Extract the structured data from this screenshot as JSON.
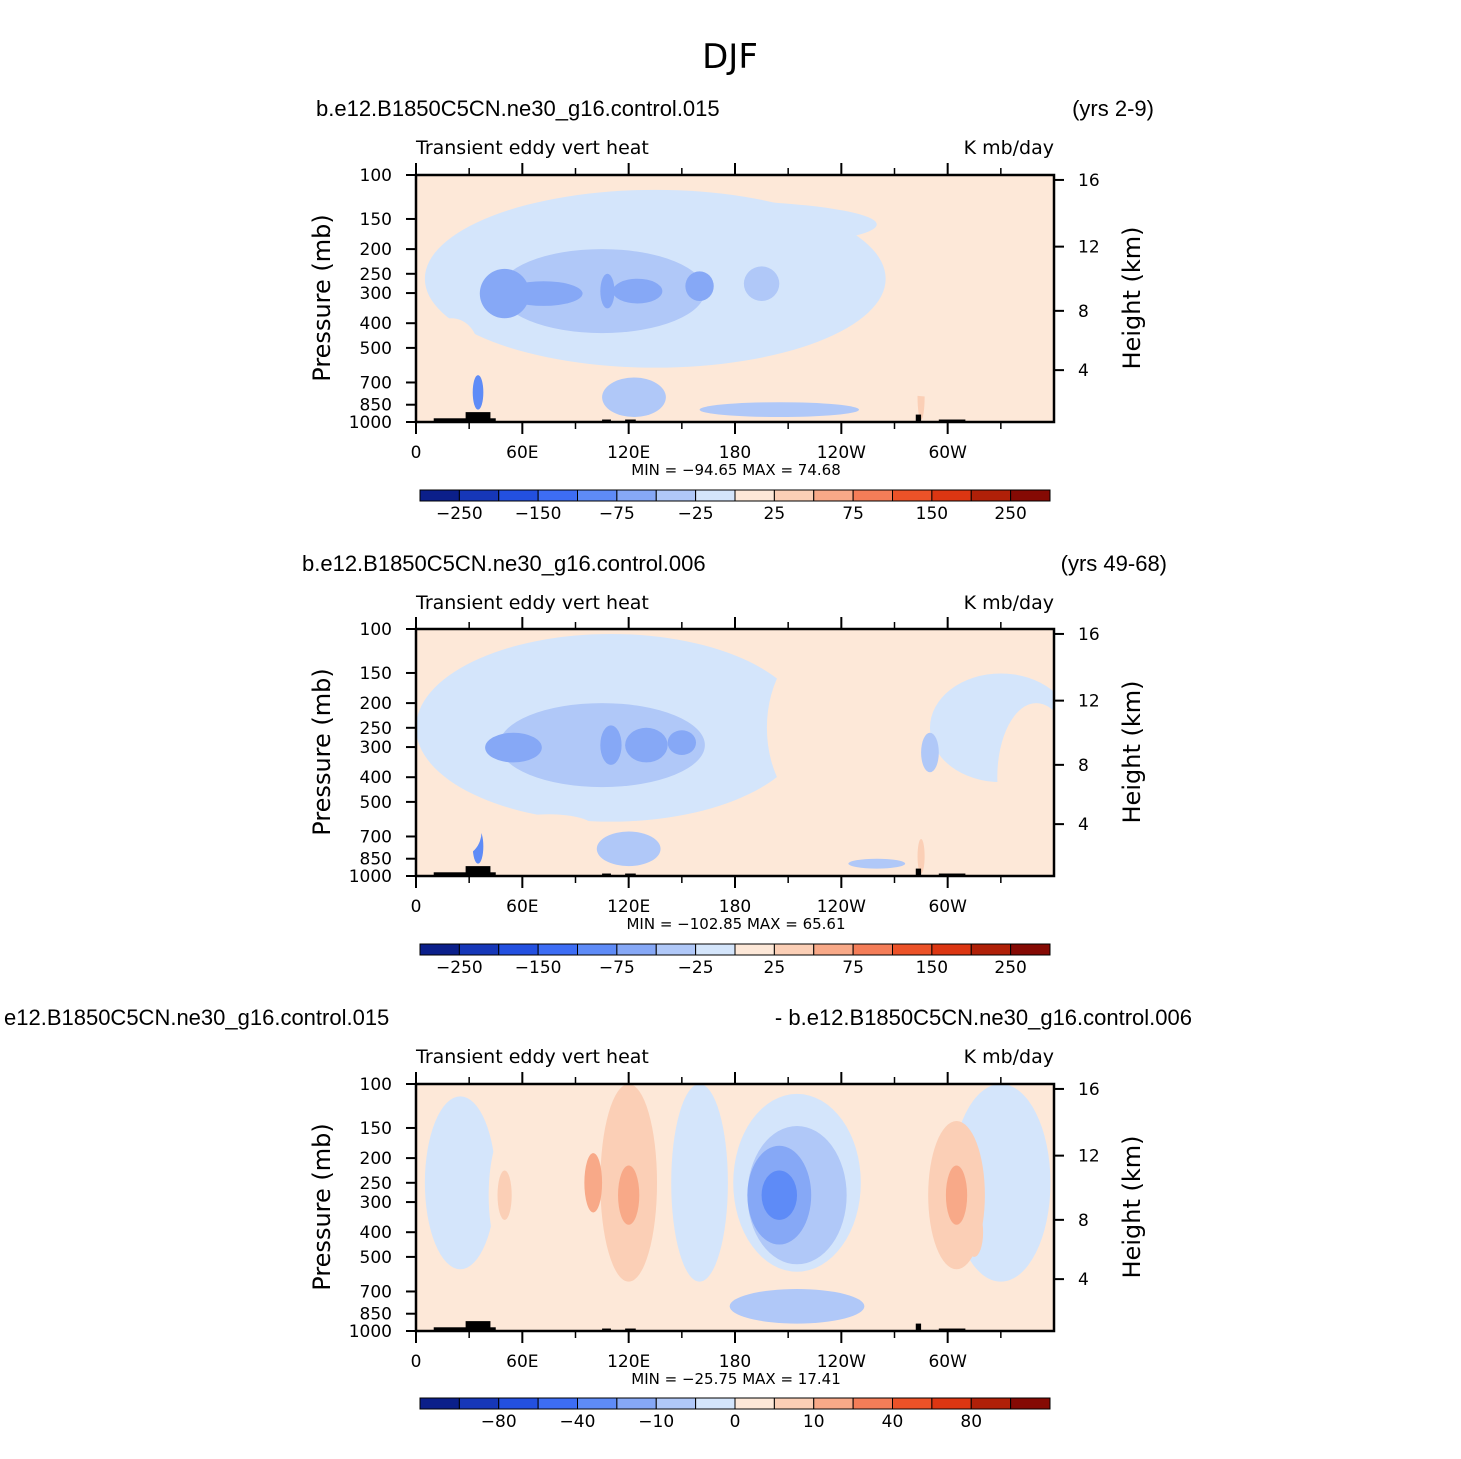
{
  "figure": {
    "title": "DJF"
  },
  "colors": {
    "fill": [
      "#0b1f8a",
      "#1637b8",
      "#2350e0",
      "#3d6df4",
      "#5e8bf7",
      "#86a8f6",
      "#b0c8f8",
      "#d4e5fb",
      "#fde8d8",
      "#fbcfb6",
      "#f8a988",
      "#f47d58",
      "#ec5228",
      "#dc3612",
      "#b02008",
      "#850a04"
    ]
  },
  "panels": [
    {
      "case_label": "b.e12.B1850C5CN.ne30_g16.control.015",
      "years_label": "(yrs 2-9)",
      "field_label": "Transient  eddy  vert  heat",
      "units_label": "K  mb/day",
      "stats_label": "MIN  =   −94.65    MAX  =    74.68",
      "colorbar_labels": [
        "−250",
        "−150",
        "−75",
        "−25",
        "25",
        "75",
        "150",
        "250"
      ]
    },
    {
      "case_label": "b.e12.B1850C5CN.ne30_g16.control.006",
      "years_label": "(yrs 49-68)",
      "field_label": "Transient  eddy  vert  heat",
      "units_label": "K  mb/day",
      "stats_label": "MIN  =  −102.85    MAX  =   65.61",
      "colorbar_labels": [
        "−250",
        "−150",
        "−75",
        "−25",
        "25",
        "75",
        "150",
        "250"
      ]
    },
    {
      "case_label": "e12.B1850C5CN.ne30_g16.control.015",
      "years_label": "- b.e12.B1850C5CN.ne30_g16.control.006",
      "field_label": "Transient  eddy  vert  heat",
      "units_label": "K  mb/day",
      "stats_label": "MIN  =  −25.75    MAX  =    17.41",
      "colorbar_labels": [
        "−80",
        "−40",
        "−10",
        "0",
        "10",
        "40",
        "80"
      ]
    }
  ],
  "chart_data": [
    {
      "type": "heatmap",
      "title": "Transient  eddy  vert  heat",
      "xlabel": "",
      "ylabel": "Pressure  (mb)",
      "y2label": "Height  (km)",
      "x_ticks": [
        "0",
        "60E",
        "120E",
        "180",
        "120W",
        "60W"
      ],
      "y_ticks": [
        "100",
        "150",
        "200",
        "250",
        "300",
        "400",
        "500",
        "700",
        "850",
        "1000"
      ],
      "y2_ticks": [
        "16",
        "12",
        "8",
        "4"
      ],
      "xlim": [
        0,
        360
      ],
      "ylim": [
        1000,
        100
      ],
      "y_scale": "log",
      "min": -94.65,
      "max": 74.68,
      "legend": "bottom colorbar"
    },
    {
      "type": "heatmap",
      "title": "Transient  eddy  vert  heat",
      "xlabel": "",
      "ylabel": "Pressure  (mb)",
      "y2label": "Height  (km)",
      "x_ticks": [
        "0",
        "60E",
        "120E",
        "180",
        "120W",
        "60W"
      ],
      "y_ticks": [
        "100",
        "150",
        "200",
        "250",
        "300",
        "400",
        "500",
        "700",
        "850",
        "1000"
      ],
      "y2_ticks": [
        "16",
        "12",
        "8",
        "4"
      ],
      "xlim": [
        0,
        360
      ],
      "ylim": [
        1000,
        100
      ],
      "y_scale": "log",
      "min": -102.85,
      "max": 65.61,
      "legend": "bottom colorbar"
    },
    {
      "type": "heatmap",
      "title": "Transient  eddy  vert  heat",
      "xlabel": "",
      "ylabel": "Pressure  (mb)",
      "y2label": "Height  (km)",
      "x_ticks": [
        "0",
        "60E",
        "120E",
        "180",
        "120W",
        "60W"
      ],
      "y_ticks": [
        "100",
        "150",
        "200",
        "250",
        "300",
        "400",
        "500",
        "700",
        "850",
        "1000"
      ],
      "y2_ticks": [
        "16",
        "12",
        "8",
        "4"
      ],
      "xlim": [
        0,
        360
      ],
      "ylim": [
        1000,
        100
      ],
      "y_scale": "log",
      "min": -25.75,
      "max": 17.41,
      "legend": "bottom colorbar"
    }
  ]
}
